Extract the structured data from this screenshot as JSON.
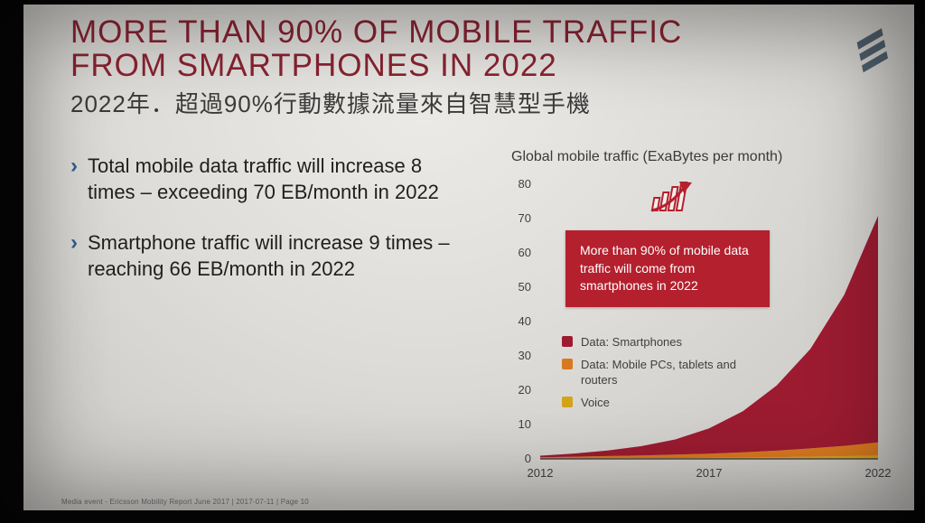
{
  "colors": {
    "title": "#8b2332",
    "subtitle": "#3b3b3b",
    "bullet-marker": "#2f5f93",
    "body-text": "#1f1f1f",
    "callout-bg": "#b4202e",
    "callout-text": "#ffffff",
    "axis": "#4a4a4a",
    "logo": "#50616f"
  },
  "slide": {
    "title_line1": "MORE THAN 90% OF MOBILE TRAFFIC",
    "title_line2": "FROM SMARTPHONES IN 2022",
    "subtitle": "2022年．超過90%行動數據流量來自智慧型手機",
    "bullets": [
      {
        "marker": "›",
        "text": "Total mobile data traffic will increase 8 times – exceeding 70 EB/month in 2022"
      },
      {
        "marker": "›",
        "text": "Smartphone traffic will increase 9 times – reaching 66 EB/month in 2022"
      }
    ],
    "footer": "Media event - Ericsson Mobility Report June 2017  |  2017-07-11  |  Page 10"
  },
  "chart": {
    "title": "Global mobile traffic (ExaBytes per month)",
    "callout": "More than 90% of mobile data traffic will come from smartphones in 2022"
  },
  "chart_data": {
    "type": "area",
    "stacked": true,
    "title": "Global mobile traffic (ExaBytes per month)",
    "x": [
      2012,
      2013,
      2014,
      2015,
      2016,
      2017,
      2018,
      2019,
      2020,
      2021,
      2022
    ],
    "series": [
      {
        "name": "Data: Smartphones",
        "color": "#9c1b30",
        "values": [
          0.45,
          0.9,
          1.6,
          2.7,
          4.4,
          7.4,
          12,
          19,
          29,
          44,
          66
        ]
      },
      {
        "name": "Data: Mobile PCs, tablets and routers",
        "color": "#d8781f",
        "values": [
          0.35,
          0.5,
          0.65,
          0.8,
          1.0,
          1.2,
          1.5,
          1.9,
          2.4,
          3.0,
          3.8
        ]
      },
      {
        "name": "Voice",
        "color": "#d2a417",
        "values": [
          0.12,
          0.14,
          0.17,
          0.2,
          0.25,
          0.3,
          0.4,
          0.5,
          0.65,
          0.8,
          1.0
        ]
      }
    ],
    "stack_note": "stacked bottom-up as Voice, Mobile PCs, Smartphones",
    "ylim": [
      0,
      80
    ],
    "yticks": [
      0,
      10,
      20,
      30,
      40,
      50,
      60,
      70,
      80
    ],
    "xticks": [
      2012,
      2017,
      2022
    ],
    "grid": false,
    "legend_position": "center-left",
    "annotation": "More than 90% of mobile data traffic will come from smartphones in 2022"
  }
}
